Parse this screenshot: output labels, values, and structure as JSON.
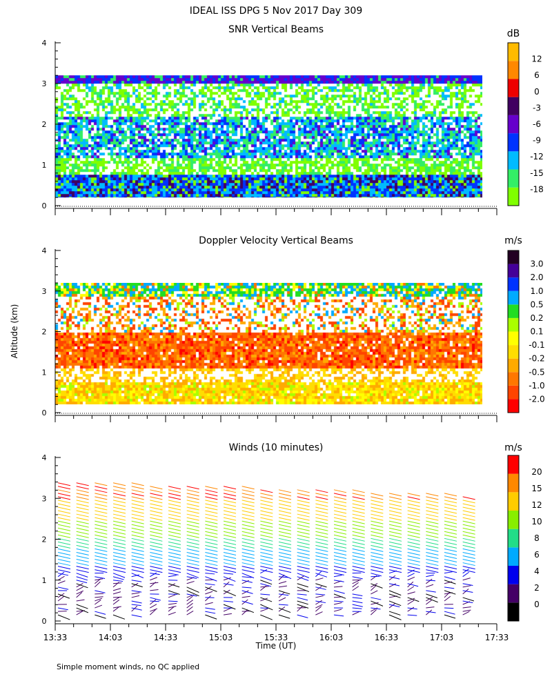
{
  "page": {
    "title": "IDEAL ISS DPG    5 Nov 2017 Day 309",
    "footnote": "Simple moment winds, no QC applied",
    "y_axis_label": "Altitude (km)",
    "x_axis_label": "Time (UT)"
  },
  "chart_data": [
    {
      "id": "snr",
      "type": "heatmap",
      "title": "SNR Vertical Beams",
      "colorbar_unit": "dB",
      "colorbar_ticks": [
        "-18",
        "-15",
        "-12",
        "-9",
        "-6",
        "-3",
        "0",
        "6",
        "12"
      ],
      "colorbar_colors": [
        "#80ff00",
        "#33ee66",
        "#00bbff",
        "#0033ff",
        "#6600cc",
        "#400060",
        "#ee0000",
        "#ff8800",
        "#ffbb00"
      ],
      "ylim": [
        0,
        4
      ],
      "y_ticks": [
        "0",
        "1",
        "2",
        "3",
        "4"
      ],
      "xlim": [
        "13:33",
        "17:33"
      ],
      "data_extent": {
        "start": "13:33",
        "end": "17:25",
        "alt_min_km": 0.2,
        "alt_max_km": 3.2
      }
    },
    {
      "id": "velocity",
      "type": "heatmap",
      "title": "Doppler Velocity Vertical Beams",
      "colorbar_unit": "m/s",
      "colorbar_ticks": [
        "-2.0",
        "-1.0",
        "-0.5",
        "-0.2",
        "-0.1",
        "0.1",
        "0.2",
        "0.5",
        "1.0",
        "2.0",
        "3.0"
      ],
      "colorbar_colors": [
        "#ff0000",
        "#ff4400",
        "#ff7700",
        "#ffaa00",
        "#ffdd00",
        "#ffff00",
        "#aaff00",
        "#22dd22",
        "#00aaff",
        "#0033ff",
        "#440099",
        "#220022"
      ],
      "ylim": [
        0,
        4
      ],
      "y_ticks": [
        "0",
        "1",
        "2",
        "3",
        "4"
      ],
      "xlim": [
        "13:33",
        "17:33"
      ],
      "data_extent": {
        "start": "13:33",
        "end": "17:25",
        "alt_min_km": 0.2,
        "alt_max_km": 3.2
      }
    },
    {
      "id": "winds",
      "type": "scatter",
      "title": "Winds (10 minutes)",
      "colorbar_unit": "m/s",
      "colorbar_ticks": [
        "0",
        "2",
        "4",
        "6",
        "8",
        "10",
        "12",
        "15",
        "20"
      ],
      "colorbar_colors": [
        "#000000",
        "#440066",
        "#0000ee",
        "#00aaff",
        "#22dd88",
        "#88ee00",
        "#ffcc00",
        "#ff8800",
        "#ff0000"
      ],
      "ylim": [
        0,
        4
      ],
      "y_ticks": [
        "0",
        "1",
        "2",
        "3",
        "4"
      ],
      "x_ticks": [
        "13:33",
        "14:03",
        "14:33",
        "15:03",
        "15:33",
        "16:03",
        "16:33",
        "17:03",
        "17:33"
      ],
      "xlim": [
        "13:33",
        "17:33"
      ],
      "profile_interval_minutes": 10,
      "profile_times": [
        "13:33",
        "13:43",
        "13:53",
        "14:03",
        "14:13",
        "14:23",
        "14:33",
        "14:43",
        "14:53",
        "15:03",
        "15:13",
        "15:23",
        "15:33",
        "15:43",
        "15:53",
        "16:03",
        "16:13",
        "16:23",
        "16:33",
        "16:43",
        "16:53",
        "17:03",
        "17:13"
      ]
    }
  ]
}
